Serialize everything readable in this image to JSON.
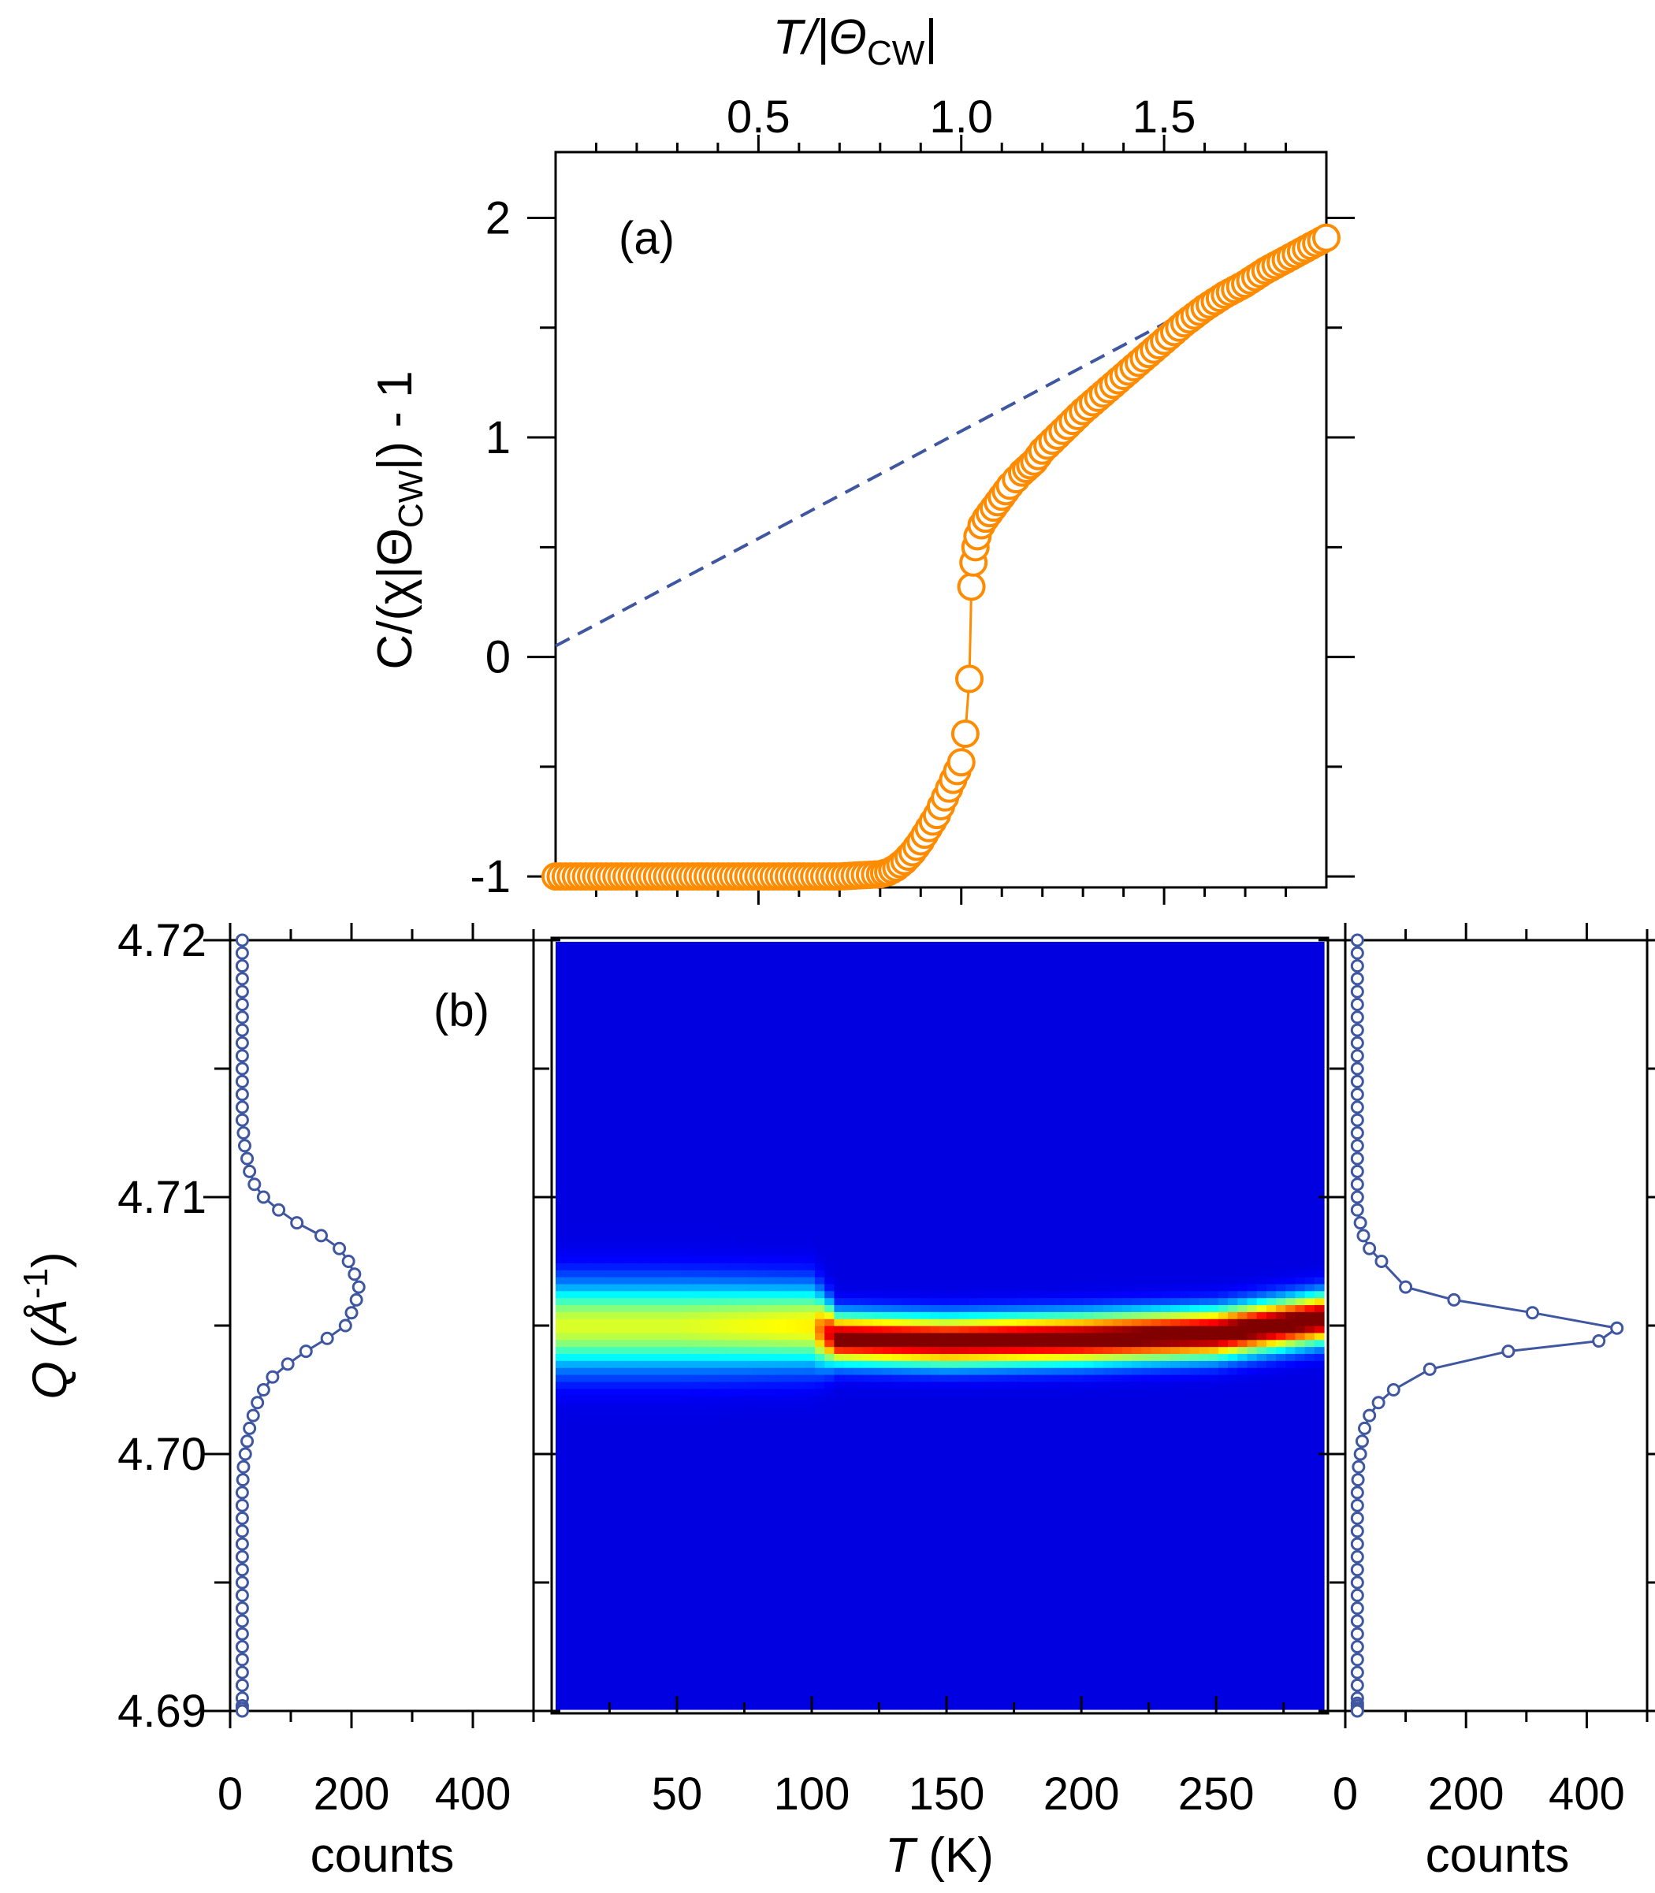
{
  "chart_data": [
    {
      "id": "a",
      "type": "line",
      "panel_label": "(a)",
      "xlabel_top": "T/|Θ",
      "xlabel_top_sub": "CW",
      "xlabel_top_end": "|",
      "ylabel": "C/(χ|Θ",
      "ylabel_sub": "CW",
      "ylabel_end": "|) - 1",
      "xlim": [
        0.0,
        1.9
      ],
      "ylim": [
        -1.05,
        2.3
      ],
      "x_ticks": [
        0.5,
        1.0,
        1.5
      ],
      "x_tick_labels": [
        "0.5",
        "1.0",
        "1.5"
      ],
      "y_ticks": [
        -1,
        0,
        1,
        2
      ],
      "y_tick_labels": [
        "-1",
        "0",
        "1",
        "2"
      ],
      "colors": {
        "data": "#ff8c00",
        "fit": "#3f56a0"
      },
      "series": [
        {
          "style": "open-circles-with-line",
          "x": [
            0.0,
            0.05,
            0.1,
            0.15,
            0.2,
            0.25,
            0.3,
            0.35,
            0.4,
            0.45,
            0.5,
            0.55,
            0.6,
            0.65,
            0.7,
            0.75,
            0.8,
            0.82,
            0.84,
            0.86,
            0.88,
            0.9,
            0.92,
            0.94,
            0.95,
            0.96,
            0.97,
            0.98,
            0.99,
            1.0,
            1.01,
            1.02,
            1.025,
            1.03,
            1.035,
            1.04,
            1.05,
            1.06,
            1.08,
            1.1,
            1.12,
            1.15,
            1.18,
            1.2,
            1.25,
            1.3,
            1.35,
            1.4,
            1.45,
            1.5,
            1.55,
            1.6,
            1.65,
            1.7,
            1.75,
            1.8,
            1.85,
            1.9
          ],
          "y": [
            -1.0,
            -1.0,
            -1.0,
            -1.0,
            -1.0,
            -1.0,
            -1.0,
            -1.0,
            -1.0,
            -1.0,
            -1.0,
            -1.0,
            -1.0,
            -1.0,
            -1.0,
            -0.995,
            -0.99,
            -0.98,
            -0.96,
            -0.93,
            -0.89,
            -0.84,
            -0.78,
            -0.72,
            -0.68,
            -0.64,
            -0.6,
            -0.56,
            -0.52,
            -0.48,
            -0.35,
            -0.1,
            0.32,
            0.43,
            0.5,
            0.55,
            0.6,
            0.63,
            0.68,
            0.73,
            0.78,
            0.84,
            0.89,
            0.94,
            1.03,
            1.12,
            1.2,
            1.28,
            1.36,
            1.44,
            1.52,
            1.59,
            1.65,
            1.7,
            1.76,
            1.81,
            1.86,
            1.91
          ]
        },
        {
          "style": "dashed-line",
          "x": [
            0.0,
            1.9
          ],
          "y": [
            0.05,
            1.91
          ]
        }
      ]
    },
    {
      "id": "b-left",
      "type": "line",
      "panel_label": "(b)",
      "xlabel": "counts",
      "ylabel": "Q (Å",
      "ylabel_sup": "-1",
      "ylabel_end": ")",
      "xlim": [
        0,
        500
      ],
      "ylim": [
        4.69,
        4.72
      ],
      "x_ticks": [
        0,
        200,
        400
      ],
      "x_tick_labels": [
        "0",
        "200",
        "400"
      ],
      "y_ticks": [
        4.69,
        4.7,
        4.71,
        4.72
      ],
      "y_tick_labels": [
        "4.69",
        "4.70",
        "4.71",
        "4.72"
      ],
      "colors": {
        "line": "#3f56a0"
      },
      "series": [
        {
          "x": [
            20,
            20,
            20,
            20,
            20,
            20,
            20,
            20,
            20,
            20,
            20,
            20,
            20,
            20,
            20,
            22,
            24,
            28,
            32,
            40,
            55,
            80,
            110,
            150,
            180,
            195,
            205,
            212,
            208,
            200,
            190,
            160,
            125,
            95,
            70,
            55,
            45,
            38,
            32,
            28,
            25,
            22,
            21,
            20,
            20,
            20,
            20,
            20,
            20,
            20,
            20,
            20,
            20,
            20,
            20,
            20,
            20,
            20,
            20,
            20,
            20,
            20,
            20
          ],
          "y": [
            4.72,
            4.7195,
            4.719,
            4.7185,
            4.718,
            4.7175,
            4.717,
            4.7165,
            4.716,
            4.7155,
            4.715,
            4.7145,
            4.714,
            4.7135,
            4.713,
            4.7125,
            4.712,
            4.7115,
            4.711,
            4.7105,
            4.71,
            4.7095,
            4.709,
            4.7085,
            4.708,
            4.7075,
            4.707,
            4.7065,
            4.706,
            4.7055,
            4.705,
            4.7045,
            4.704,
            4.7035,
            4.703,
            4.7025,
            4.702,
            4.7015,
            4.701,
            4.7005,
            4.7,
            4.6995,
            4.699,
            4.6985,
            4.698,
            4.6975,
            4.697,
            4.6965,
            4.696,
            4.6955,
            4.695,
            4.6945,
            4.694,
            4.6935,
            4.693,
            4.6925,
            4.692,
            4.6915,
            4.691,
            4.6905,
            4.6902,
            4.6901,
            4.69
          ]
        }
      ]
    },
    {
      "id": "b-map",
      "type": "heatmap",
      "xlabel": "T (K)",
      "xlim": [
        5,
        290
      ],
      "ylim": [
        4.69,
        4.72
      ],
      "x_ticks": [
        50,
        100,
        150,
        200,
        250
      ],
      "x_tick_labels": [
        "50",
        "100",
        "150",
        "200",
        "250"
      ],
      "ridge": {
        "T": [
          5,
          50,
          100,
          110,
          150,
          200,
          250,
          290
        ],
        "Q": [
          4.705,
          4.705,
          4.705,
          4.7045,
          4.7044,
          4.7045,
          4.7047,
          4.7053
        ],
        "peak_intensity": [
          0.45,
          0.45,
          0.5,
          0.9,
          0.9,
          0.93,
          0.95,
          0.95
        ],
        "width": [
          0.0016,
          0.0016,
          0.0015,
          0.0009,
          0.0009,
          0.0009,
          0.0009,
          0.0009
        ]
      },
      "colormap": [
        "#00008f",
        "#0000ff",
        "#0080ff",
        "#00ffff",
        "#80ff80",
        "#ffff00",
        "#ff8000",
        "#ff0000",
        "#800000"
      ]
    },
    {
      "id": "b-right",
      "type": "line",
      "xlabel": "counts",
      "xlim": [
        0,
        500
      ],
      "ylim": [
        4.69,
        4.72
      ],
      "x_ticks": [
        0,
        200,
        400
      ],
      "x_tick_labels": [
        "0",
        "200",
        "400"
      ],
      "colors": {
        "line": "#3f56a0"
      },
      "series": [
        {
          "x": [
            20,
            20,
            20,
            20,
            20,
            20,
            20,
            20,
            20,
            20,
            20,
            20,
            20,
            20,
            20,
            20,
            20,
            20,
            20,
            20,
            20,
            20,
            25,
            30,
            40,
            60,
            100,
            180,
            310,
            450,
            420,
            270,
            140,
            80,
            55,
            40,
            32,
            28,
            25,
            22,
            21,
            20,
            20,
            20,
            20,
            20,
            20,
            20,
            20,
            20,
            20,
            20,
            20,
            20,
            20,
            20,
            20,
            20,
            20,
            20,
            20,
            20,
            20
          ],
          "y": [
            4.72,
            4.7195,
            4.719,
            4.7185,
            4.718,
            4.7175,
            4.717,
            4.7165,
            4.716,
            4.7155,
            4.715,
            4.7145,
            4.714,
            4.7135,
            4.713,
            4.7125,
            4.712,
            4.7115,
            4.711,
            4.7105,
            4.71,
            4.7095,
            4.709,
            4.7085,
            4.708,
            4.7075,
            4.7065,
            4.706,
            4.7055,
            4.7049,
            4.7044,
            4.704,
            4.7033,
            4.7025,
            4.702,
            4.7015,
            4.701,
            4.7005,
            4.7,
            4.6995,
            4.699,
            4.6985,
            4.698,
            4.6975,
            4.697,
            4.6965,
            4.696,
            4.6955,
            4.695,
            4.6945,
            4.694,
            4.6935,
            4.693,
            4.6925,
            4.692,
            4.6915,
            4.691,
            4.6905,
            4.6903,
            4.6902,
            4.6901,
            4.69005,
            4.69
          ]
        }
      ]
    }
  ]
}
